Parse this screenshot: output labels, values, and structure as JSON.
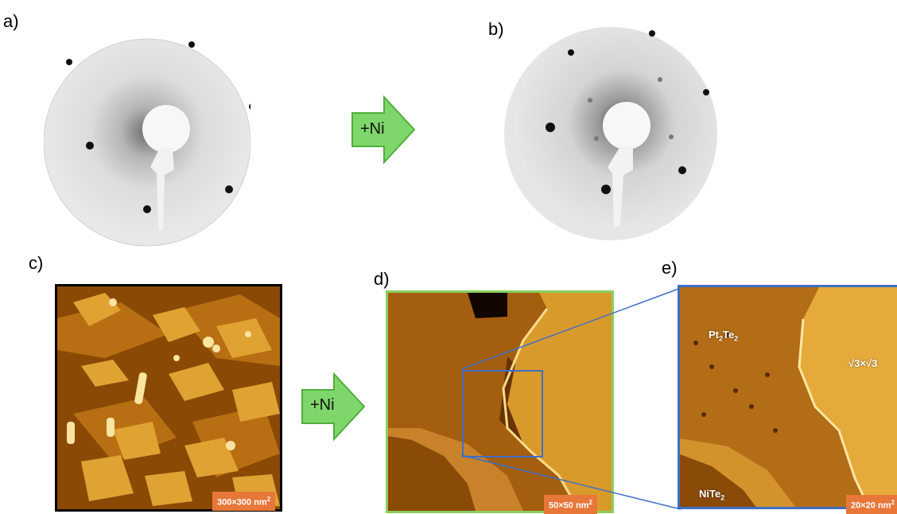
{
  "panels": {
    "a": "a)",
    "b": "b)",
    "c": "c)",
    "d": "d)",
    "e": "e)"
  },
  "arrows": [
    {
      "label": "+Ni"
    },
    {
      "label": "+Ni"
    }
  ],
  "scale_bars": {
    "c": {
      "value": "300×300 nm",
      "unit_exp": "2"
    },
    "d": {
      "value": "50×50 nm",
      "unit_exp": "2"
    },
    "e": {
      "value": "20×20 nm",
      "unit_exp": "2"
    }
  },
  "image_labels": {
    "pt2te2": {
      "base": "Pt",
      "sub1": "2",
      "mid": "Te",
      "sub2": "2"
    },
    "sqrt3": "√3×√3",
    "nite2": {
      "base": "NiTe",
      "sub": "2"
    }
  },
  "colors": {
    "arrow_fill": "#7fd66a",
    "arrow_stroke": "#4fae3b",
    "frame_c": "#000000",
    "frame_d": "#8ccf5f",
    "frame_e": "#3f6ec4",
    "zoom_lines": "#3f6ec4",
    "scale_bg": "#e8773a"
  }
}
